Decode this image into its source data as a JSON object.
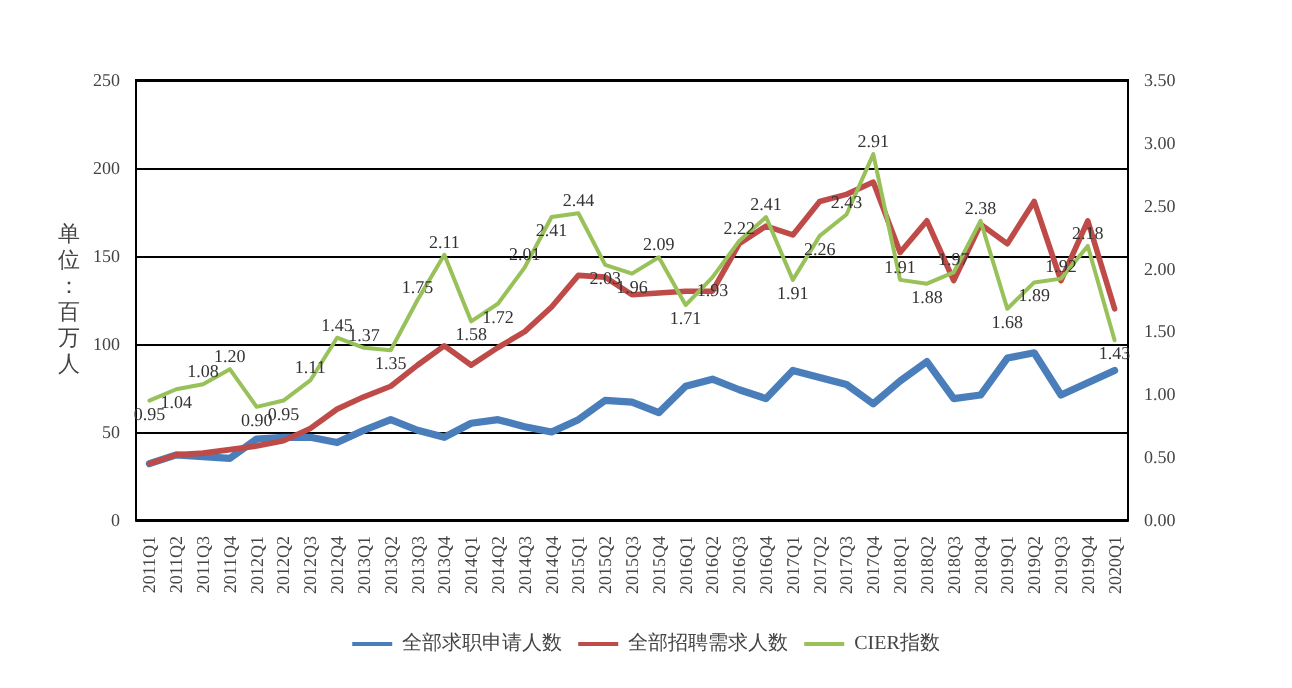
{
  "chart_data": {
    "type": "line",
    "ylabel": "单位：百万人",
    "categories": [
      "2011Q1",
      "2011Q2",
      "2011Q3",
      "2011Q4",
      "2012Q1",
      "2012Q2",
      "2012Q3",
      "2012Q4",
      "2013Q1",
      "2013Q2",
      "2013Q3",
      "2013Q4",
      "2014Q1",
      "2014Q2",
      "2014Q3",
      "2014Q4",
      "2015Q1",
      "2015Q2",
      "2015Q3",
      "2015Q4",
      "2016Q1",
      "2016Q2",
      "2016Q3",
      "2016Q4",
      "2017Q1",
      "2017Q2",
      "2017Q3",
      "2017Q4",
      "2018Q1",
      "2018Q2",
      "2018Q3",
      "2018Q4",
      "2019Q1",
      "2019Q2",
      "2019Q3",
      "2019Q4",
      "2020Q1"
    ],
    "series": [
      {
        "name": "全部求职申请人数",
        "color": "#4a7ebb",
        "values": [
          32,
          37,
          36,
          35,
          46,
          47,
          47,
          44,
          51,
          57,
          51,
          47,
          55,
          57,
          53,
          50,
          57,
          68,
          67,
          61,
          76,
          80,
          74,
          69,
          85,
          81,
          77,
          66,
          79,
          90,
          69,
          71,
          92,
          95,
          71,
          78,
          85
        ]
      },
      {
        "name": "全部招聘需求人数",
        "color": "#be4b48",
        "values": [
          32,
          37,
          38,
          40,
          42,
          45,
          52,
          63,
          70,
          76,
          88,
          99,
          88,
          98,
          107,
          121,
          139,
          138,
          128,
          129,
          130,
          130,
          157,
          167,
          162,
          181,
          185,
          192,
          152,
          170,
          136,
          168,
          157,
          181,
          136,
          170,
          120
        ]
      },
      {
        "name": "CIER指数",
        "color": "#98c15a",
        "axis": "y2",
        "values": [
          0.95,
          1.04,
          1.08,
          1.2,
          0.9,
          0.95,
          1.11,
          1.45,
          1.37,
          1.35,
          1.75,
          2.11,
          1.58,
          1.72,
          2.01,
          2.41,
          2.44,
          2.03,
          1.96,
          2.09,
          1.71,
          1.93,
          2.22,
          2.41,
          1.91,
          2.26,
          2.43,
          2.91,
          1.91,
          1.88,
          1.97,
          2.38,
          1.68,
          1.89,
          1.92,
          2.18,
          1.43
        ],
        "value_labels": [
          "0.95",
          "1.04",
          "1.08",
          "1.20",
          "0.90",
          "0.95",
          "1.11",
          "1.45",
          "1.37",
          "1.35",
          "1.75",
          "2.11",
          "1.58",
          "1.72",
          "2.01",
          "2.41",
          "2.44",
          "2.03",
          "1.96",
          "2.09",
          "1.71",
          "1.93",
          "2.22",
          "2.41",
          "1.91",
          "2.26",
          "2.43",
          "2.91",
          "1.91",
          "1.88",
          "1.97",
          "2.38",
          "1.68",
          "1.89",
          "1.92",
          "2.18",
          "1.43"
        ]
      }
    ],
    "ylim": [
      0,
      250
    ],
    "yticks": [
      0,
      50,
      100,
      150,
      200,
      250
    ],
    "y2lim": [
      0,
      3.5
    ],
    "y2ticks": [
      {
        "value": 0,
        "label": "0.00"
      },
      {
        "value": 0.5,
        "label": "0.50"
      },
      {
        "value": 1,
        "label": "1.00"
      },
      {
        "value": 1.5,
        "label": "1.50"
      },
      {
        "value": 2,
        "label": "2.00"
      },
      {
        "value": 2.5,
        "label": "2.50"
      },
      {
        "value": 3,
        "label": "3.00"
      },
      {
        "value": 3.5,
        "label": "3.50"
      }
    ],
    "grid": "y",
    "legend": "bottom",
    "marker": "none",
    "line_style": "solid"
  }
}
